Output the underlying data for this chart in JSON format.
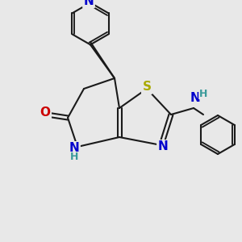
{
  "bg_color": "#e8e8e8",
  "bond_color": "#1a1a1a",
  "atom_colors": {
    "N": "#0000cc",
    "O": "#cc0000",
    "S": "#aaaa00",
    "C": "#1a1a1a",
    "H_label": "#3a9a9a"
  },
  "font_size_atom": 11,
  "font_size_small": 9,
  "lw": 1.5
}
